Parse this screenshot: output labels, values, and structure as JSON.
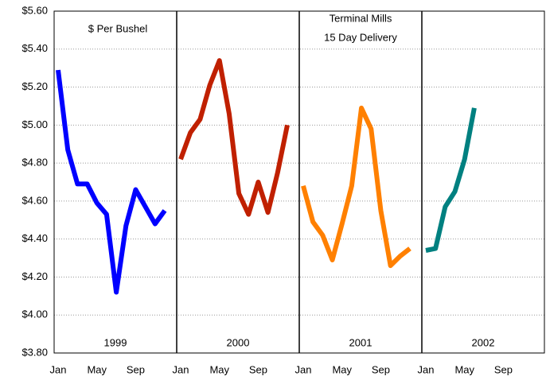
{
  "chart_data": {
    "type": "line",
    "annotations": [
      "$ Per Bushel",
      "Terminal Mills",
      "15 Day Delivery"
    ],
    "categories": [
      "Jan",
      null,
      null,
      null,
      "May",
      null,
      null,
      null,
      "Sep",
      null,
      null,
      null
    ],
    "series": [
      {
        "name": "1999",
        "color": "#0000ff",
        "values": [
          5.29,
          4.87,
          4.69,
          4.69,
          4.59,
          4.53,
          4.12,
          4.47,
          4.66,
          4.57,
          4.48,
          4.55
        ]
      },
      {
        "name": "2000",
        "color": "#c02000",
        "values": [
          4.82,
          4.96,
          5.03,
          5.21,
          5.34,
          5.06,
          4.64,
          4.53,
          4.7,
          4.54,
          4.75,
          5.0
        ]
      },
      {
        "name": "2001",
        "color": "#ff8000",
        "values": [
          4.68,
          4.49,
          4.42,
          4.29,
          4.48,
          4.68,
          5.09,
          4.98,
          4.55,
          4.26,
          4.31,
          4.35
        ]
      },
      {
        "name": "2002",
        "color": "#008080",
        "values": [
          4.34,
          4.35,
          4.57,
          4.65,
          4.82,
          5.09,
          null,
          null,
          null,
          null,
          null,
          null
        ]
      }
    ],
    "ylim": [
      3.8,
      5.6
    ],
    "yticks": [
      {
        "value": 3.8,
        "label": "$3.80"
      },
      {
        "value": 4.0,
        "label": "$4.00"
      },
      {
        "value": 4.2,
        "label": "$4.20"
      },
      {
        "value": 4.4,
        "label": "$4.40"
      },
      {
        "value": 4.6,
        "label": "$4.60"
      },
      {
        "value": 4.8,
        "label": "$4.80"
      },
      {
        "value": 5.0,
        "label": "$5.00"
      },
      {
        "value": 5.2,
        "label": "$5.20"
      },
      {
        "value": 5.4,
        "label": "$5.40"
      },
      {
        "value": 5.6,
        "label": "$5.60"
      }
    ],
    "grid": true
  }
}
